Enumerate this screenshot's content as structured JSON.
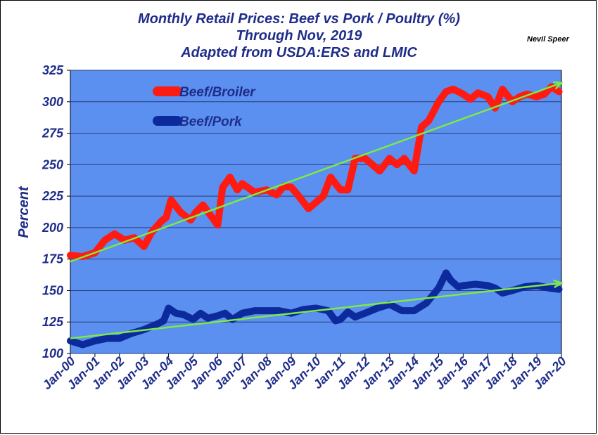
{
  "title_lines": [
    "Monthly Retail Prices:  Beef vs Pork / Poultry (%)",
    "Through Nov, 2019",
    "Adapted from USDA:ERS and LMIC"
  ],
  "credit": "Nevil Speer",
  "colors": {
    "plot_bg": "#5b8ff0",
    "grid": "#2a3f7a",
    "text": "#1f2d8a",
    "beef_broiler": "#ff1a12",
    "beef_pork": "#0d2a9c",
    "trend": "#7dea45"
  },
  "chart_data": {
    "type": "line",
    "ylabel": "Percent",
    "xlabel": "",
    "ylim": [
      100,
      325
    ],
    "yticks": [
      100,
      125,
      150,
      175,
      200,
      225,
      250,
      275,
      300,
      325
    ],
    "xlim": [
      2000,
      2020
    ],
    "xtick_labels": [
      "Jan-00",
      "Jan-01",
      "Jan-02",
      "Jan-03",
      "Jan-04",
      "Jan-05",
      "Jan-06",
      "Jan-07",
      "Jan-08",
      "Jan-09",
      "Jan-10",
      "Jan-11",
      "Jan-12",
      "Jan-13",
      "Jan-14",
      "Jan-15",
      "Jan-16",
      "Jan-17",
      "Jan-18",
      "Jan-19",
      "Jan-20"
    ],
    "grid": "horizontal",
    "legend_position": "top-left",
    "series": [
      {
        "name": "Beef/Broiler",
        "x": [
          2000.0,
          2000.5,
          2001.0,
          2001.4,
          2001.8,
          2002.2,
          2002.6,
          2003.0,
          2003.3,
          2003.7,
          2003.9,
          2004.1,
          2004.5,
          2004.9,
          2005.1,
          2005.4,
          2005.7,
          2006.0,
          2006.2,
          2006.5,
          2006.8,
          2007.0,
          2007.5,
          2008.0,
          2008.4,
          2008.7,
          2009.0,
          2009.3,
          2009.7,
          2010.0,
          2010.3,
          2010.6,
          2011.0,
          2011.3,
          2011.6,
          2012.0,
          2012.3,
          2012.6,
          2013.0,
          2013.3,
          2013.6,
          2014.0,
          2014.3,
          2014.6,
          2015.0,
          2015.3,
          2015.6,
          2016.0,
          2016.3,
          2016.6,
          2017.0,
          2017.3,
          2017.6,
          2018.0,
          2018.3,
          2018.6,
          2019.0,
          2019.3,
          2019.6,
          2019.9
        ],
        "values": [
          178,
          177,
          180,
          190,
          195,
          190,
          192,
          185,
          196,
          205,
          208,
          222,
          212,
          206,
          212,
          218,
          210,
          202,
          232,
          240,
          230,
          235,
          228,
          230,
          226,
          233,
          232,
          225,
          215,
          220,
          225,
          240,
          230,
          230,
          255,
          255,
          250,
          245,
          255,
          250,
          255,
          245,
          280,
          285,
          300,
          308,
          310,
          306,
          302,
          307,
          304,
          295,
          310,
          300,
          304,
          306,
          304,
          306,
          312,
          308
        ]
      },
      {
        "name": "Beef/Pork",
        "x": [
          2000.0,
          2000.5,
          2001.0,
          2001.5,
          2002.0,
          2002.5,
          2003.0,
          2003.5,
          2003.8,
          2004.0,
          2004.3,
          2004.6,
          2005.0,
          2005.3,
          2005.6,
          2006.0,
          2006.3,
          2006.6,
          2007.0,
          2007.5,
          2008.0,
          2008.5,
          2009.0,
          2009.5,
          2010.0,
          2010.5,
          2010.8,
          2011.0,
          2011.3,
          2011.6,
          2012.0,
          2012.5,
          2013.0,
          2013.5,
          2014.0,
          2014.5,
          2015.0,
          2015.3,
          2015.5,
          2015.8,
          2016.0,
          2016.5,
          2017.0,
          2017.3,
          2017.6,
          2018.0,
          2018.5,
          2019.0,
          2019.5,
          2019.9
        ],
        "values": [
          110,
          107,
          110,
          112,
          112,
          116,
          119,
          123,
          126,
          136,
          132,
          131,
          127,
          132,
          128,
          130,
          132,
          127,
          132,
          134,
          134,
          134,
          132,
          135,
          136,
          134,
          126,
          127,
          133,
          129,
          132,
          136,
          139,
          134,
          134,
          140,
          152,
          164,
          158,
          153,
          154,
          155,
          154,
          152,
          148,
          150,
          153,
          154,
          152,
          151
        ]
      }
    ],
    "trend_lines": [
      {
        "series": "Beef/Broiler",
        "x": [
          2000,
          2020
        ],
        "values": [
          173,
          315
        ]
      },
      {
        "series": "Beef/Pork",
        "x": [
          2000,
          2020
        ],
        "values": [
          112,
          156
        ]
      }
    ]
  }
}
